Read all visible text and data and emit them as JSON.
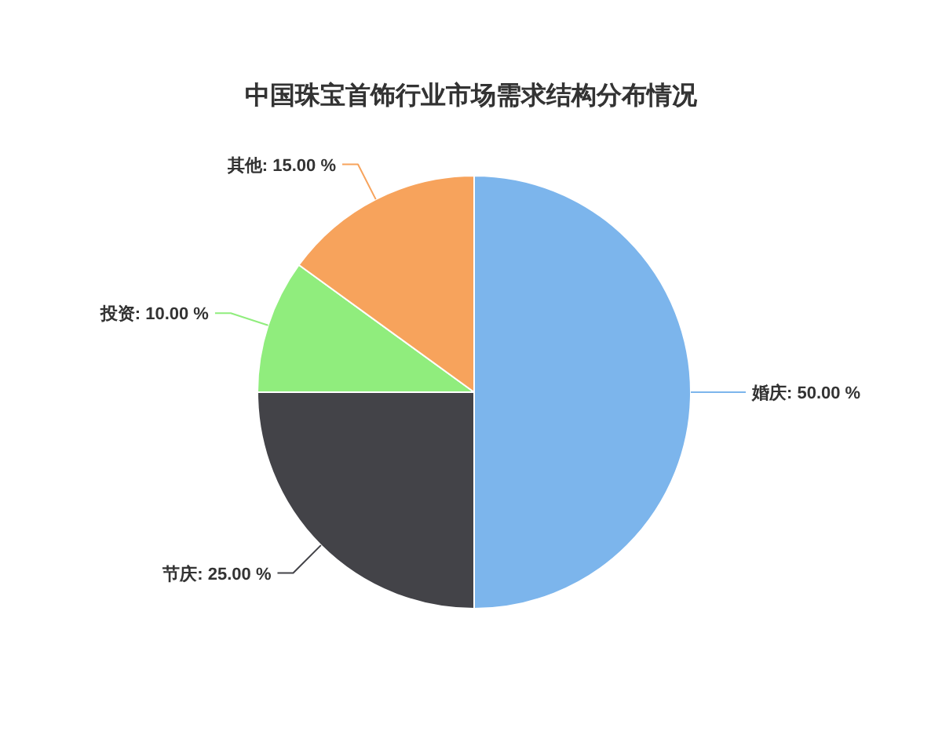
{
  "chart_data": {
    "type": "pie",
    "title": "中国珠宝首饰行业市场需求结构分布情况",
    "categories": [
      "婚庆",
      "节庆",
      "投资",
      "其他"
    ],
    "values": [
      50,
      25,
      10,
      15
    ],
    "colors": [
      "#7cb5ec",
      "#434348",
      "#90ed7d",
      "#f7a35c"
    ],
    "value_labels": [
      "50.00 %",
      "25.00 %",
      "10.00 %",
      "15.00 %"
    ]
  }
}
